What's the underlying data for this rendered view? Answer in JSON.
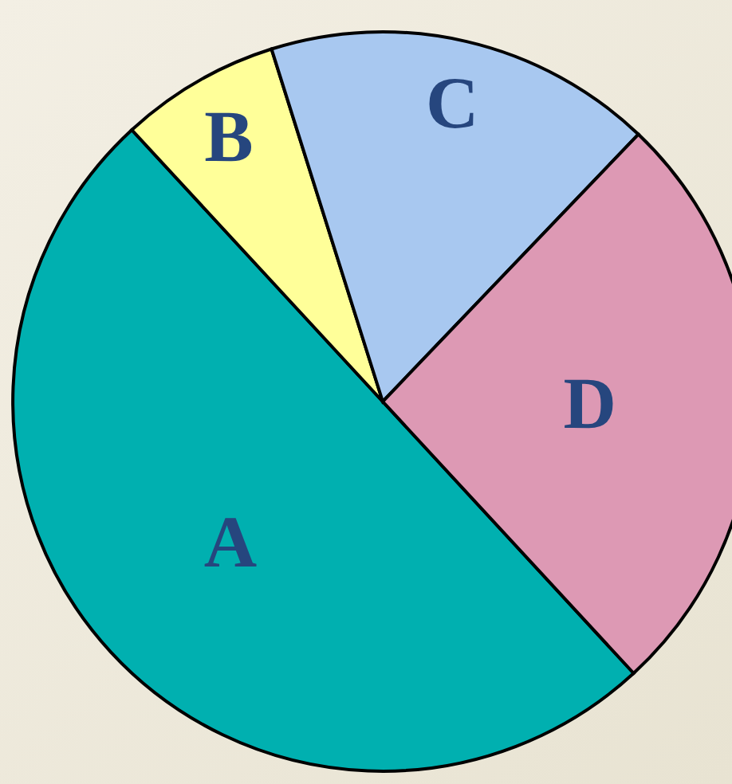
{
  "chart_data": {
    "type": "pie",
    "categories": [
      "A",
      "B",
      "C",
      "D"
    ],
    "values": [
      50,
      7,
      17,
      26
    ],
    "colors": [
      "#00b0b0",
      "#ffff99",
      "#a8c8f0",
      "#dd99b4"
    ]
  }
}
